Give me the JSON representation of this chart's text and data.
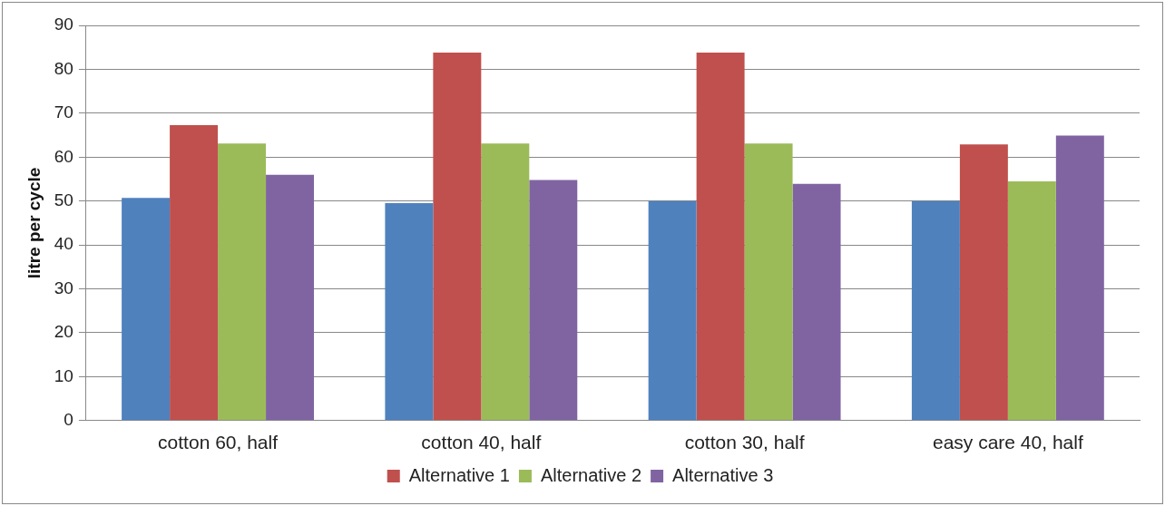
{
  "chart_data": {
    "type": "bar",
    "ylabel": "litre per cycle",
    "categories": [
      "cotton 60, half",
      "cotton 40, half",
      "cotton 30, half",
      "easy care 40, half"
    ],
    "series": [
      {
        "color": "#4f81bd",
        "values": [
          50.7,
          49.5,
          50.0,
          50.0
        ]
      },
      {
        "name": "Alternative 1",
        "color": "#c0504d",
        "values": [
          67.3,
          83.8,
          83.8,
          62.9
        ]
      },
      {
        "name": "Alternative 2",
        "color": "#9bbb59",
        "values": [
          63.1,
          63.1,
          63.1,
          54.5
        ]
      },
      {
        "name": "Alternative 3",
        "color": "#8064a2",
        "values": [
          56.0,
          54.8,
          53.9,
          64.9
        ]
      }
    ],
    "ylim": [
      0,
      90
    ],
    "yticks": [
      0,
      10,
      20,
      30,
      40,
      50,
      60,
      70,
      80,
      90
    ],
    "grid": "y",
    "legend": "bottom"
  }
}
